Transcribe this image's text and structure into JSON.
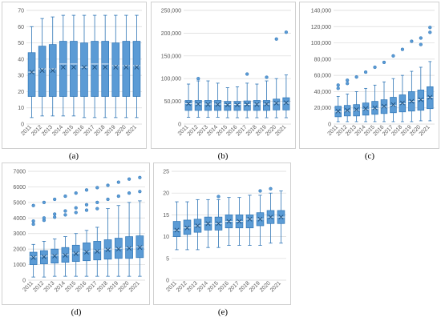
{
  "colors": {
    "box_fill": "#5b9bd5",
    "box_stroke": "#2e75b6",
    "whisker": "#2e75b6",
    "grid": "#d9d9d9",
    "mean_marker": "#1f4e79"
  },
  "chart_data": [
    {
      "type": "box",
      "caption": "(a)",
      "categories": [
        "2011",
        "2012",
        "2013",
        "2014",
        "2015",
        "2016",
        "2017",
        "2018",
        "2019",
        "2020",
        "2021"
      ],
      "y_ticks": [
        "0",
        "10",
        "20",
        "30",
        "40",
        "50",
        "60",
        "70"
      ],
      "ylim": [
        0,
        70
      ],
      "grid": true,
      "boxes": [
        {
          "min": 4,
          "q1": 17,
          "median": 32,
          "q3": 44,
          "max": 60,
          "mean": 32
        },
        {
          "min": 5,
          "q1": 17,
          "median": 34,
          "q3": 48,
          "max": 65,
          "mean": 33
        },
        {
          "min": 5,
          "q1": 17,
          "median": 34,
          "q3": 49,
          "max": 66,
          "mean": 33
        },
        {
          "min": 5,
          "q1": 17,
          "median": 37,
          "q3": 51,
          "max": 67,
          "mean": 35
        },
        {
          "min": 5,
          "q1": 17,
          "median": 37,
          "q3": 51,
          "max": 67,
          "mean": 35
        },
        {
          "min": 4,
          "q1": 17,
          "median": 35,
          "q3": 50,
          "max": 67,
          "mean": 35
        },
        {
          "min": 4,
          "q1": 17,
          "median": 37,
          "q3": 51,
          "max": 67,
          "mean": 35
        },
        {
          "min": 4,
          "q1": 17,
          "median": 37,
          "q3": 51,
          "max": 67,
          "mean": 35
        },
        {
          "min": 4,
          "q1": 17,
          "median": 36,
          "q3": 50,
          "max": 67,
          "mean": 35
        },
        {
          "min": 4,
          "q1": 17,
          "median": 36,
          "q3": 51,
          "max": 67,
          "mean": 35
        },
        {
          "min": 4,
          "q1": 17,
          "median": 36,
          "q3": 51,
          "max": 67,
          "mean": 35
        }
      ],
      "outliers": []
    },
    {
      "type": "box",
      "caption": "(b)",
      "categories": [
        "2011",
        "2012",
        "2013",
        "2014",
        "2015",
        "2016",
        "2017",
        "2018",
        "2019",
        "2020",
        "2021"
      ],
      "y_ticks": [
        "0",
        "50,000",
        "100,000",
        "150,000",
        "200,000",
        "250,000"
      ],
      "ylim": [
        0,
        250000
      ],
      "grid": true,
      "boxes": [
        {
          "min": 15000,
          "q1": 30000,
          "median": 45000,
          "q3": 52000,
          "max": 88000,
          "mean": 45000
        },
        {
          "min": 15000,
          "q1": 30000,
          "median": 44000,
          "q3": 52000,
          "max": 95000,
          "mean": 44000
        },
        {
          "min": 15000,
          "q1": 30000,
          "median": 44000,
          "q3": 52000,
          "max": 95000,
          "mean": 43000
        },
        {
          "min": 15000,
          "q1": 30000,
          "median": 44000,
          "q3": 52000,
          "max": 90000,
          "mean": 43000
        },
        {
          "min": 14000,
          "q1": 30000,
          "median": 43000,
          "q3": 50000,
          "max": 80000,
          "mean": 42000
        },
        {
          "min": 14000,
          "q1": 30000,
          "median": 43000,
          "q3": 50000,
          "max": 82000,
          "mean": 42000
        },
        {
          "min": 14000,
          "q1": 30000,
          "median": 43000,
          "q3": 51000,
          "max": 90000,
          "mean": 43000
        },
        {
          "min": 14000,
          "q1": 30000,
          "median": 44000,
          "q3": 52000,
          "max": 88000,
          "mean": 43000
        },
        {
          "min": 14000,
          "q1": 30000,
          "median": 44000,
          "q3": 52000,
          "max": 95000,
          "mean": 44000
        },
        {
          "min": 14000,
          "q1": 31000,
          "median": 46000,
          "q3": 55000,
          "max": 100000,
          "mean": 46000
        },
        {
          "min": 14000,
          "q1": 31000,
          "median": 46000,
          "q3": 58000,
          "max": 108000,
          "mean": 47000
        }
      ],
      "outliers": [
        {
          "i": 1,
          "v": 100000
        },
        {
          "i": 6,
          "v": 110000
        },
        {
          "i": 8,
          "v": 103000
        },
        {
          "i": 9,
          "v": 187000
        },
        {
          "i": 10,
          "v": 202000
        }
      ]
    },
    {
      "type": "box",
      "caption": "(c)",
      "categories": [
        "2011",
        "2012",
        "2013",
        "2014",
        "2015",
        "2016",
        "2017",
        "2018",
        "2019",
        "2020",
        "2021"
      ],
      "y_ticks": [
        "0",
        "20,000",
        "40,000",
        "60,000",
        "80,000",
        "100,000",
        "120,000",
        "140,000"
      ],
      "ylim": [
        0,
        140000
      ],
      "grid": true,
      "boxes": [
        {
          "min": 3000,
          "q1": 9000,
          "median": 15000,
          "q3": 22000,
          "max": 34000,
          "mean": 16000
        },
        {
          "min": 3000,
          "q1": 10000,
          "median": 16000,
          "q3": 23000,
          "max": 37000,
          "mean": 17000
        },
        {
          "min": 3000,
          "q1": 10000,
          "median": 17000,
          "q3": 24000,
          "max": 40000,
          "mean": 18000
        },
        {
          "min": 3000,
          "q1": 11000,
          "median": 18000,
          "q3": 26000,
          "max": 44000,
          "mean": 19000
        },
        {
          "min": 3000,
          "q1": 12000,
          "median": 19000,
          "q3": 28000,
          "max": 48000,
          "mean": 20000
        },
        {
          "min": 3000,
          "q1": 13000,
          "median": 21000,
          "q3": 30000,
          "max": 52000,
          "mean": 22000
        },
        {
          "min": 3000,
          "q1": 14000,
          "median": 23000,
          "q3": 33000,
          "max": 56000,
          "mean": 24000
        },
        {
          "min": 3000,
          "q1": 15000,
          "median": 25000,
          "q3": 36000,
          "max": 60000,
          "mean": 26000
        },
        {
          "min": 3000,
          "q1": 16000,
          "median": 28000,
          "q3": 40000,
          "max": 65000,
          "mean": 28000
        },
        {
          "min": 4000,
          "q1": 17000,
          "median": 30000,
          "q3": 42000,
          "max": 70000,
          "mean": 30000
        },
        {
          "min": 4000,
          "q1": 19000,
          "median": 33000,
          "q3": 46000,
          "max": 77000,
          "mean": 33000
        }
      ],
      "outliers": [
        {
          "i": 0,
          "v": 44000
        },
        {
          "i": 0,
          "v": 48000
        },
        {
          "i": 1,
          "v": 50000
        },
        {
          "i": 1,
          "v": 54000
        },
        {
          "i": 2,
          "v": 58000
        },
        {
          "i": 3,
          "v": 64000
        },
        {
          "i": 4,
          "v": 70000
        },
        {
          "i": 5,
          "v": 76000
        },
        {
          "i": 6,
          "v": 84000
        },
        {
          "i": 7,
          "v": 92000
        },
        {
          "i": 8,
          "v": 102000
        },
        {
          "i": 9,
          "v": 98000
        },
        {
          "i": 9,
          "v": 106000
        },
        {
          "i": 10,
          "v": 113000
        },
        {
          "i": 10,
          "v": 119000
        }
      ]
    },
    {
      "type": "box",
      "caption": "(d)",
      "categories": [
        "2011",
        "2012",
        "2013",
        "2014",
        "2015",
        "2016",
        "2017",
        "2018",
        "2019",
        "2020",
        "2021"
      ],
      "y_ticks": [
        "0",
        "1000",
        "2000",
        "3000",
        "4000",
        "5000",
        "6000",
        "7000"
      ],
      "ylim": [
        0,
        7000
      ],
      "grid": true,
      "boxes": [
        {
          "min": 200,
          "q1": 1000,
          "median": 1500,
          "q3": 1800,
          "max": 2300,
          "mean": 1450
        },
        {
          "min": 200,
          "q1": 1050,
          "median": 1550,
          "q3": 1900,
          "max": 2500,
          "mean": 1500
        },
        {
          "min": 250,
          "q1": 1100,
          "median": 1600,
          "q3": 2000,
          "max": 2650,
          "mean": 1550
        },
        {
          "min": 250,
          "q1": 1150,
          "median": 1650,
          "q3": 2100,
          "max": 2800,
          "mean": 1600
        },
        {
          "min": 250,
          "q1": 1200,
          "median": 1750,
          "q3": 2250,
          "max": 3000,
          "mean": 1700
        },
        {
          "min": 250,
          "q1": 1250,
          "median": 1850,
          "q3": 2400,
          "max": 3200,
          "mean": 1800
        },
        {
          "min": 250,
          "q1": 1300,
          "median": 1900,
          "q3": 2500,
          "max": 3400,
          "mean": 1850
        },
        {
          "min": 250,
          "q1": 1350,
          "median": 2000,
          "q3": 2600,
          "max": 4600,
          "mean": 1950
        },
        {
          "min": 250,
          "q1": 1400,
          "median": 2050,
          "q3": 2700,
          "max": 4800,
          "mean": 2000
        },
        {
          "min": 250,
          "q1": 1400,
          "median": 2100,
          "q3": 2800,
          "max": 5000,
          "mean": 2050
        },
        {
          "min": 250,
          "q1": 1450,
          "median": 2150,
          "q3": 2850,
          "max": 5100,
          "mean": 2100
        }
      ],
      "outliers": [
        {
          "i": 0,
          "v": 3600
        },
        {
          "i": 0,
          "v": 3800
        },
        {
          "i": 0,
          "v": 4800
        },
        {
          "i": 1,
          "v": 3850
        },
        {
          "i": 1,
          "v": 4000
        },
        {
          "i": 1,
          "v": 5000
        },
        {
          "i": 2,
          "v": 4050
        },
        {
          "i": 2,
          "v": 4250
        },
        {
          "i": 2,
          "v": 5200
        },
        {
          "i": 3,
          "v": 4200
        },
        {
          "i": 3,
          "v": 4450
        },
        {
          "i": 3,
          "v": 5400
        },
        {
          "i": 4,
          "v": 4350
        },
        {
          "i": 4,
          "v": 4650
        },
        {
          "i": 4,
          "v": 5600
        },
        {
          "i": 5,
          "v": 4500
        },
        {
          "i": 5,
          "v": 4850
        },
        {
          "i": 5,
          "v": 5800
        },
        {
          "i": 6,
          "v": 4600
        },
        {
          "i": 6,
          "v": 5000
        },
        {
          "i": 6,
          "v": 5950
        },
        {
          "i": 7,
          "v": 5200
        },
        {
          "i": 7,
          "v": 6100
        },
        {
          "i": 8,
          "v": 5400
        },
        {
          "i": 8,
          "v": 6300
        },
        {
          "i": 9,
          "v": 5600
        },
        {
          "i": 9,
          "v": 6500
        },
        {
          "i": 10,
          "v": 5700
        },
        {
          "i": 10,
          "v": 6600
        }
      ]
    },
    {
      "type": "box",
      "caption": "(e)",
      "categories": [
        "2011",
        "2012",
        "2013",
        "2014",
        "2015",
        "2016",
        "2017",
        "2018",
        "2019",
        "2020",
        "2021"
      ],
      "y_ticks": [
        "0",
        "5",
        "10",
        "15",
        "20",
        "25"
      ],
      "ylim": [
        0,
        25
      ],
      "grid": true,
      "boxes": [
        {
          "min": 7,
          "q1": 10,
          "median": 11.5,
          "q3": 13.5,
          "max": 18,
          "mean": 11.5
        },
        {
          "min": 7,
          "q1": 10.5,
          "median": 12,
          "q3": 13.8,
          "max": 18,
          "mean": 12
        },
        {
          "min": 7,
          "q1": 11,
          "median": 12.5,
          "q3": 14,
          "max": 18.5,
          "mean": 12.5
        },
        {
          "min": 7.5,
          "q1": 11.5,
          "median": 13,
          "q3": 14.5,
          "max": 18.5,
          "mean": 13
        },
        {
          "min": 7.5,
          "q1": 11.5,
          "median": 13,
          "q3": 14.5,
          "max": 18.5,
          "mean": 13
        },
        {
          "min": 8,
          "q1": 12,
          "median": 13.5,
          "q3": 15,
          "max": 19,
          "mean": 13.5
        },
        {
          "min": 8,
          "q1": 12,
          "median": 13.5,
          "q3": 15,
          "max": 19,
          "mean": 13.5
        },
        {
          "min": 8,
          "q1": 12,
          "median": 14,
          "q3": 15,
          "max": 19.5,
          "mean": 14
        },
        {
          "min": 8,
          "q1": 12.5,
          "median": 14,
          "q3": 15.5,
          "max": 19.5,
          "mean": 14
        },
        {
          "min": 8.5,
          "q1": 13,
          "median": 14.5,
          "q3": 16,
          "max": 20,
          "mean": 14.5
        },
        {
          "min": 8.5,
          "q1": 13,
          "median": 14.5,
          "q3": 16,
          "max": 20.5,
          "mean": 14.5
        }
      ],
      "outliers": [
        {
          "i": 4,
          "v": 19.2
        },
        {
          "i": 8,
          "v": 20.5
        },
        {
          "i": 9,
          "v": 21
        }
      ]
    }
  ]
}
